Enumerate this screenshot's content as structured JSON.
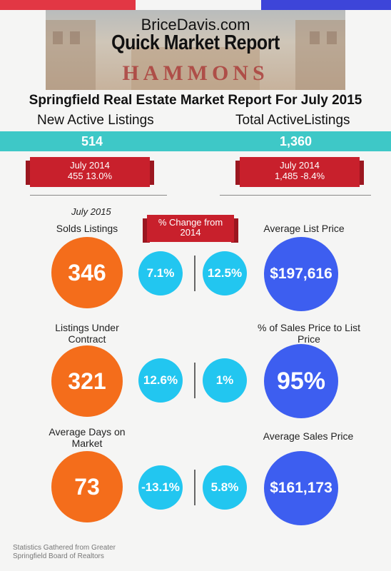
{
  "header": {
    "brand": "BriceDavis.com",
    "title": "Quick Market Report",
    "venue_sign": "HAMMONS FIELD"
  },
  "report": {
    "subtitle": "Springfield  Real Estate  Market Report For July 2015",
    "new_active": {
      "label": "New Active Listings",
      "value": "514",
      "prior_label": "July 2014",
      "prior_value": "455   13.0%"
    },
    "total_active": {
      "label": "Total  ActiveListings",
      "value": "1,360",
      "prior_label": "July 2014",
      "prior_value": "1,485    -8.4%"
    }
  },
  "section": {
    "period": "July 2015",
    "change_label": "% Change from 2014"
  },
  "metrics": [
    {
      "left_label": "Solds Listings",
      "left_value": "346",
      "left_change": "7.1%",
      "right_change": "12.5%",
      "right_label": "Average List Price",
      "right_value": "$197,616"
    },
    {
      "left_label": "Listings Under Contract",
      "left_value": "321",
      "left_change": "12.6%",
      "right_change": "1%",
      "right_label": "% of Sales Price to List Price",
      "right_value": "95%"
    },
    {
      "left_label": "Average Days on Market",
      "left_value": "73",
      "left_change": "-13.1%",
      "right_change": "5.8%",
      "right_label": "Average Sales Price",
      "right_value": "$161,173"
    }
  ],
  "footer": {
    "line1": "Statistics Gathered from Greater",
    "line2": "Springfield Board of Realtors"
  },
  "colors": {
    "red": "#e23744",
    "blue": "#3d5ef0",
    "teal": "#3ec8c7",
    "orange": "#f46d1b",
    "light_blue": "#22c6f0"
  }
}
